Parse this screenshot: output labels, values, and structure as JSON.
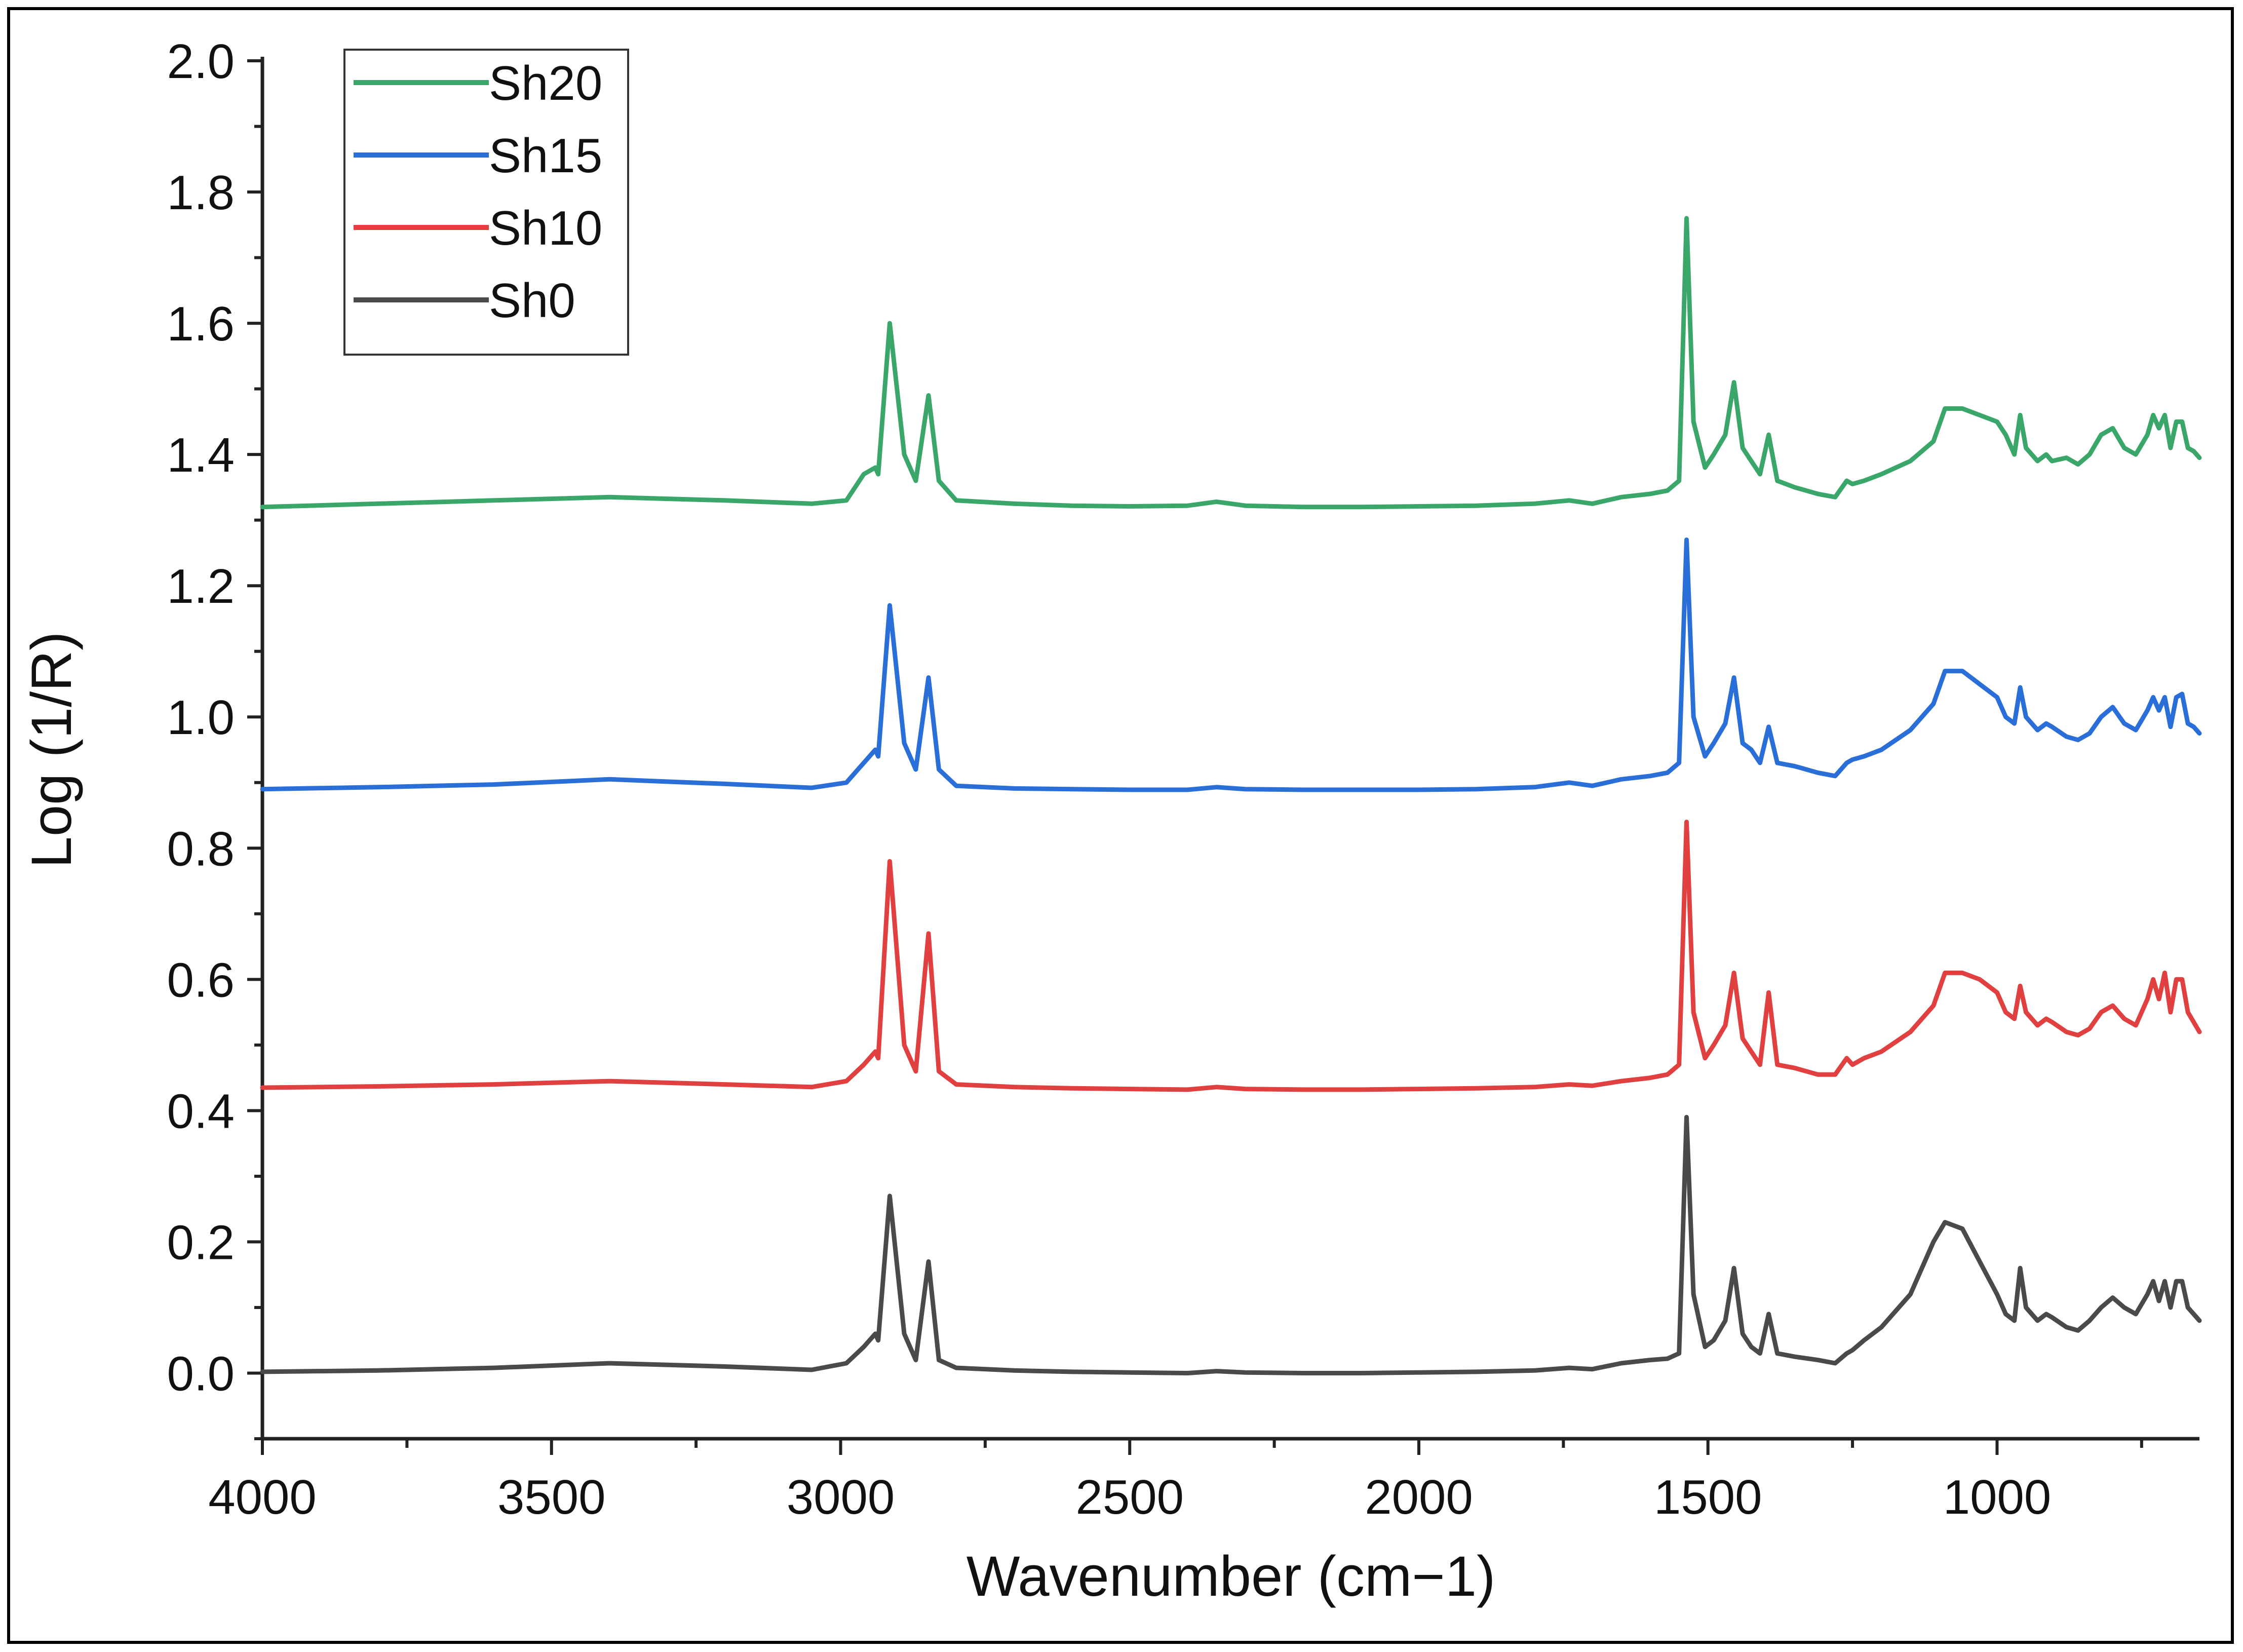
{
  "chart_data": {
    "type": "line",
    "xlabel": "Wavenumber (cm−1)",
    "ylabel": "Log (1/R)",
    "xlim": [
      4000,
      650
    ],
    "ylim": [
      -0.1,
      2.0
    ],
    "x_reversed": true,
    "grid": false,
    "legend_position": "top-left",
    "x_ticks": [
      "4000",
      "3500",
      "3000",
      "2500",
      "2000",
      "1500",
      "1000"
    ],
    "y_ticks": [
      "0.0",
      "0.2",
      "0.4",
      "0.6",
      "0.8",
      "1.0",
      "1.2",
      "1.4",
      "1.6",
      "1.8",
      "2.0"
    ],
    "series": [
      {
        "name": "Sh20",
        "color": "#3aa66a",
        "x": [
          4000,
          3800,
          3600,
          3400,
          3200,
          3050,
          2990,
          2960,
          2940,
          2935,
          2915,
          2890,
          2870,
          2848,
          2830,
          2800,
          2700,
          2600,
          2500,
          2400,
          2350,
          2300,
          2200,
          2100,
          2000,
          1900,
          1800,
          1740,
          1700,
          1650,
          1600,
          1570,
          1550,
          1537,
          1525,
          1505,
          1490,
          1470,
          1455,
          1440,
          1425,
          1410,
          1395,
          1380,
          1350,
          1310,
          1280,
          1260,
          1250,
          1230,
          1200,
          1150,
          1110,
          1090,
          1060,
          1030,
          1000,
          985,
          970,
          960,
          950,
          930,
          915,
          905,
          880,
          860,
          840,
          820,
          800,
          780,
          760,
          740,
          730,
          720,
          710,
          700,
          690,
          680,
          670,
          660,
          650
        ],
        "y": [
          1.32,
          1.325,
          1.33,
          1.335,
          1.33,
          1.325,
          1.33,
          1.37,
          1.38,
          1.37,
          1.6,
          1.4,
          1.36,
          1.49,
          1.36,
          1.33,
          1.325,
          1.322,
          1.321,
          1.322,
          1.328,
          1.322,
          1.32,
          1.32,
          1.321,
          1.322,
          1.325,
          1.33,
          1.325,
          1.335,
          1.34,
          1.345,
          1.36,
          1.76,
          1.45,
          1.38,
          1.4,
          1.43,
          1.51,
          1.41,
          1.39,
          1.37,
          1.43,
          1.36,
          1.35,
          1.34,
          1.335,
          1.36,
          1.355,
          1.36,
          1.37,
          1.39,
          1.42,
          1.47,
          1.47,
          1.46,
          1.45,
          1.43,
          1.4,
          1.46,
          1.41,
          1.39,
          1.4,
          1.39,
          1.395,
          1.385,
          1.4,
          1.43,
          1.44,
          1.41,
          1.4,
          1.43,
          1.46,
          1.44,
          1.46,
          1.41,
          1.45,
          1.45,
          1.41,
          1.405,
          1.395
        ]
      },
      {
        "name": "Sh15",
        "color": "#2a6fd8",
        "x": [
          4000,
          3800,
          3600,
          3400,
          3200,
          3050,
          2990,
          2960,
          2940,
          2935,
          2915,
          2890,
          2870,
          2848,
          2830,
          2800,
          2700,
          2600,
          2500,
          2400,
          2350,
          2300,
          2200,
          2100,
          2000,
          1900,
          1800,
          1740,
          1700,
          1650,
          1600,
          1570,
          1550,
          1537,
          1525,
          1505,
          1490,
          1470,
          1455,
          1440,
          1425,
          1410,
          1395,
          1380,
          1350,
          1310,
          1280,
          1260,
          1250,
          1230,
          1200,
          1150,
          1110,
          1090,
          1060,
          1030,
          1000,
          985,
          970,
          960,
          950,
          930,
          915,
          905,
          880,
          860,
          840,
          820,
          800,
          780,
          760,
          740,
          730,
          720,
          710,
          700,
          690,
          680,
          670,
          660,
          650
        ],
        "y": [
          0.89,
          0.893,
          0.897,
          0.905,
          0.898,
          0.892,
          0.9,
          0.93,
          0.95,
          0.94,
          1.17,
          0.96,
          0.92,
          1.06,
          0.92,
          0.895,
          0.891,
          0.89,
          0.889,
          0.889,
          0.893,
          0.89,
          0.889,
          0.889,
          0.889,
          0.89,
          0.893,
          0.9,
          0.895,
          0.905,
          0.91,
          0.915,
          0.93,
          1.27,
          1.0,
          0.94,
          0.96,
          0.99,
          1.06,
          0.96,
          0.95,
          0.93,
          0.985,
          0.93,
          0.925,
          0.915,
          0.91,
          0.93,
          0.935,
          0.94,
          0.95,
          0.98,
          1.02,
          1.07,
          1.07,
          1.05,
          1.03,
          1.0,
          0.99,
          1.045,
          1.0,
          0.98,
          0.99,
          0.985,
          0.97,
          0.965,
          0.975,
          1.0,
          1.015,
          0.99,
          0.98,
          1.01,
          1.03,
          1.01,
          1.03,
          0.985,
          1.03,
          1.035,
          0.99,
          0.985,
          0.975
        ]
      },
      {
        "name": "Sh10",
        "color": "#e0403f",
        "x": [
          4000,
          3800,
          3600,
          3400,
          3200,
          3050,
          2990,
          2960,
          2940,
          2935,
          2915,
          2890,
          2870,
          2848,
          2830,
          2800,
          2700,
          2600,
          2500,
          2400,
          2350,
          2300,
          2200,
          2100,
          2000,
          1900,
          1800,
          1740,
          1700,
          1650,
          1600,
          1570,
          1550,
          1537,
          1525,
          1505,
          1490,
          1470,
          1455,
          1440,
          1425,
          1410,
          1395,
          1380,
          1350,
          1310,
          1280,
          1260,
          1250,
          1230,
          1200,
          1150,
          1110,
          1090,
          1060,
          1030,
          1000,
          985,
          970,
          960,
          950,
          930,
          915,
          905,
          880,
          860,
          840,
          820,
          800,
          780,
          760,
          740,
          730,
          720,
          710,
          700,
          690,
          680,
          670,
          660,
          650
        ],
        "y": [
          0.435,
          0.437,
          0.44,
          0.445,
          0.44,
          0.436,
          0.445,
          0.47,
          0.49,
          0.48,
          0.78,
          0.5,
          0.46,
          0.67,
          0.46,
          0.44,
          0.436,
          0.434,
          0.433,
          0.432,
          0.436,
          0.433,
          0.432,
          0.432,
          0.433,
          0.434,
          0.436,
          0.44,
          0.438,
          0.445,
          0.45,
          0.455,
          0.47,
          0.84,
          0.55,
          0.48,
          0.5,
          0.53,
          0.61,
          0.51,
          0.49,
          0.47,
          0.58,
          0.47,
          0.465,
          0.455,
          0.455,
          0.48,
          0.47,
          0.48,
          0.49,
          0.52,
          0.56,
          0.61,
          0.61,
          0.6,
          0.58,
          0.55,
          0.54,
          0.59,
          0.55,
          0.53,
          0.54,
          0.535,
          0.52,
          0.515,
          0.525,
          0.55,
          0.56,
          0.54,
          0.53,
          0.57,
          0.6,
          0.57,
          0.61,
          0.55,
          0.6,
          0.6,
          0.55,
          0.535,
          0.52
        ]
      },
      {
        "name": "Sh0",
        "color": "#4a4a4a",
        "x": [
          4000,
          3800,
          3600,
          3400,
          3200,
          3050,
          2990,
          2960,
          2940,
          2935,
          2915,
          2890,
          2870,
          2848,
          2830,
          2800,
          2700,
          2600,
          2500,
          2400,
          2350,
          2300,
          2200,
          2100,
          2000,
          1900,
          1800,
          1740,
          1700,
          1650,
          1600,
          1570,
          1550,
          1537,
          1525,
          1505,
          1490,
          1470,
          1455,
          1440,
          1425,
          1410,
          1395,
          1380,
          1350,
          1310,
          1280,
          1260,
          1250,
          1230,
          1200,
          1150,
          1110,
          1090,
          1060,
          1030,
          1000,
          985,
          970,
          960,
          950,
          930,
          915,
          905,
          880,
          860,
          840,
          820,
          800,
          780,
          760,
          740,
          730,
          720,
          710,
          700,
          690,
          680,
          670,
          660,
          650
        ],
        "y": [
          0.002,
          0.004,
          0.008,
          0.015,
          0.01,
          0.005,
          0.015,
          0.04,
          0.06,
          0.05,
          0.27,
          0.06,
          0.02,
          0.17,
          0.02,
          0.008,
          0.004,
          0.002,
          0.001,
          0.0,
          0.003,
          0.001,
          0.0,
          0.0,
          0.001,
          0.002,
          0.004,
          0.008,
          0.006,
          0.015,
          0.02,
          0.022,
          0.03,
          0.39,
          0.12,
          0.04,
          0.05,
          0.08,
          0.16,
          0.06,
          0.04,
          0.03,
          0.09,
          0.03,
          0.025,
          0.02,
          0.015,
          0.03,
          0.035,
          0.05,
          0.07,
          0.12,
          0.2,
          0.23,
          0.22,
          0.17,
          0.12,
          0.09,
          0.08,
          0.16,
          0.1,
          0.08,
          0.09,
          0.085,
          0.07,
          0.065,
          0.08,
          0.1,
          0.115,
          0.1,
          0.09,
          0.12,
          0.14,
          0.11,
          0.14,
          0.1,
          0.14,
          0.14,
          0.1,
          0.09,
          0.08
        ]
      }
    ]
  }
}
